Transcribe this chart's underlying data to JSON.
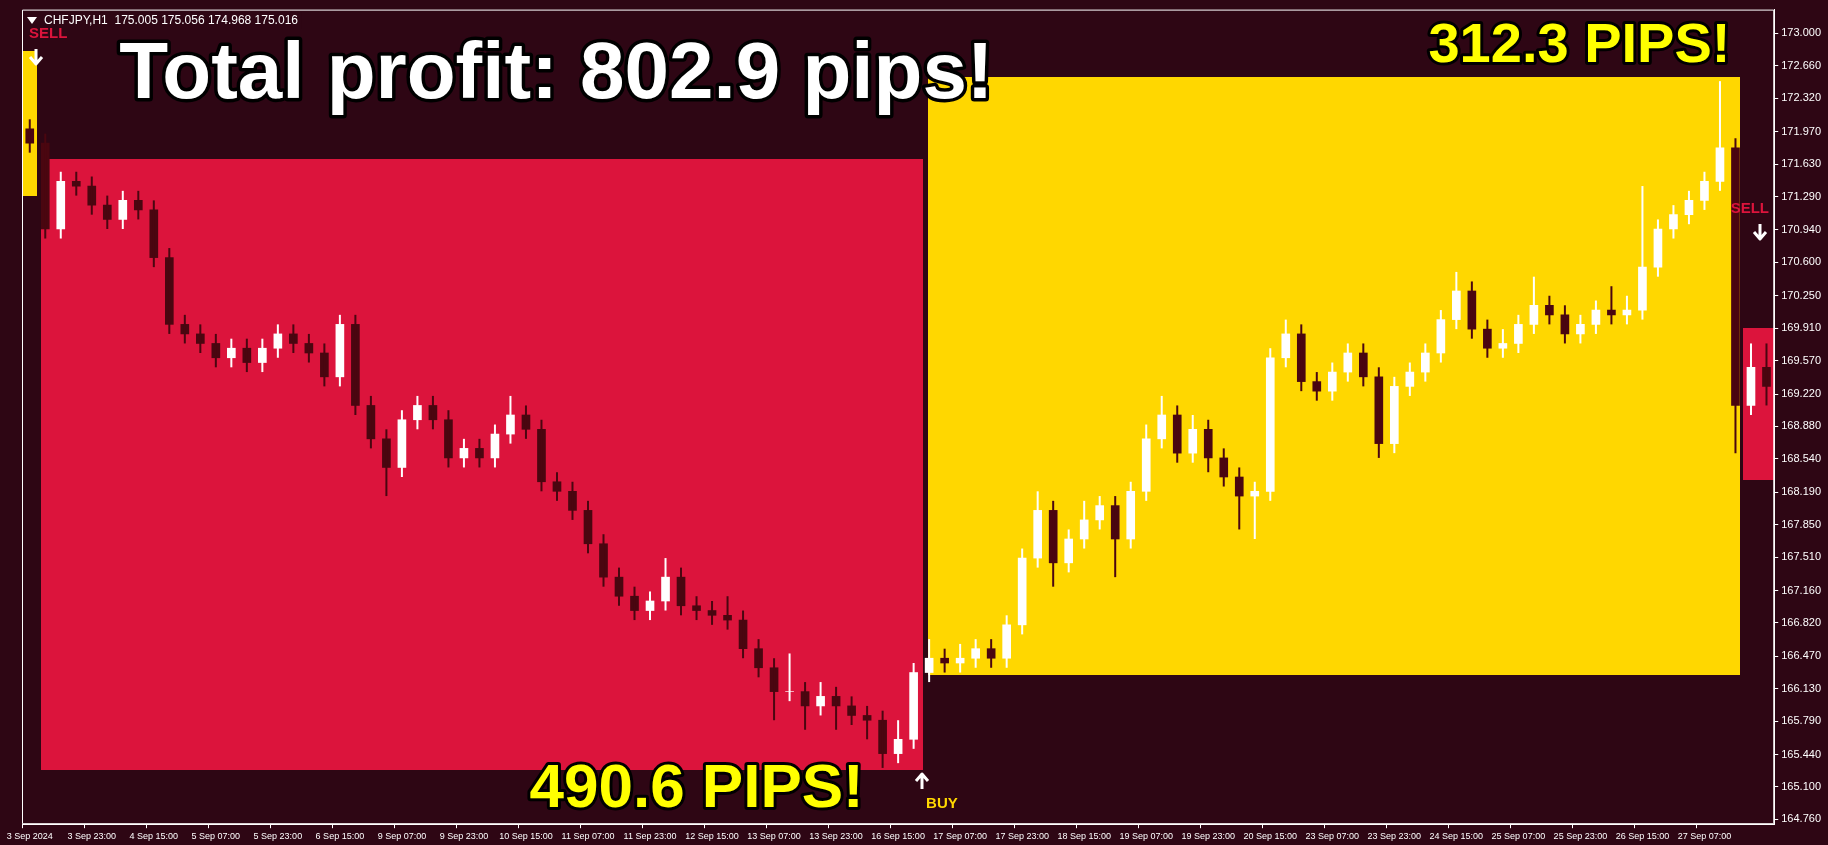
{
  "chart_data": {
    "type": "candlestick",
    "title": "CHFJPY,H1  175.005 175.056 174.968 175.016",
    "categories": [
      "3 Sep 2024",
      null,
      null,
      null,
      "3 Sep 23:00",
      null,
      null,
      null,
      "4 Sep 15:00",
      null,
      null,
      null,
      "5 Sep 07:00",
      null,
      null,
      null,
      "5 Sep 23:00",
      null,
      null,
      null,
      "6 Sep 15:00",
      null,
      null,
      null,
      "9 Sep 07:00",
      null,
      null,
      null,
      "9 Sep 23:00",
      null,
      null,
      null,
      "10 Sep 15:00",
      null,
      null,
      null,
      "11 Sep 07:00",
      null,
      null,
      null,
      "11 Sep 23:00",
      null,
      null,
      null,
      "12 Sep 15:00",
      null,
      null,
      null,
      "13 Sep 07:00",
      null,
      null,
      null,
      "13 Sep 23:00",
      null,
      null,
      null,
      "16 Sep 15:00",
      null,
      null,
      null,
      "17 Sep 07:00",
      null,
      null,
      null,
      "17 Sep 23:00",
      null,
      null,
      null,
      "18 Sep 15:00",
      null,
      null,
      null,
      "19 Sep 07:00",
      null,
      null,
      null,
      "19 Sep 23:00",
      null,
      null,
      null,
      "20 Sep 15:00",
      null,
      null,
      null,
      "23 Sep 07:00",
      null,
      null,
      null,
      "23 Sep 23:00",
      null,
      null,
      null,
      "24 Sep 15:00",
      null,
      null,
      null,
      "25 Sep 07:00",
      null,
      null,
      null,
      "25 Sep 23:00",
      null,
      null,
      null,
      "26 Sep 15:00",
      null,
      null,
      null,
      "27 Sep 07:00",
      null,
      null,
      null,
      null
    ],
    "ohlc": [
      [
        172.0,
        172.1,
        171.75,
        171.85
      ],
      [
        171.85,
        171.95,
        170.85,
        170.95
      ],
      [
        170.95,
        171.55,
        170.85,
        171.45
      ],
      [
        171.45,
        171.55,
        171.3,
        171.4
      ],
      [
        171.4,
        171.5,
        171.1,
        171.2
      ],
      [
        171.2,
        171.3,
        170.95,
        171.05
      ],
      [
        171.05,
        171.35,
        170.95,
        171.25
      ],
      [
        171.25,
        171.35,
        171.05,
        171.15
      ],
      [
        171.15,
        171.25,
        170.55,
        170.65
      ],
      [
        170.65,
        170.75,
        169.85,
        169.95
      ],
      [
        169.95,
        170.05,
        169.75,
        169.85
      ],
      [
        169.85,
        169.95,
        169.65,
        169.75
      ],
      [
        169.75,
        169.85,
        169.5,
        169.6
      ],
      [
        169.6,
        169.8,
        169.5,
        169.7
      ],
      [
        169.7,
        169.8,
        169.45,
        169.55
      ],
      [
        169.55,
        169.8,
        169.45,
        169.7
      ],
      [
        169.7,
        169.95,
        169.6,
        169.85
      ],
      [
        169.85,
        169.95,
        169.65,
        169.75
      ],
      [
        169.75,
        169.85,
        169.55,
        169.65
      ],
      [
        169.65,
        169.75,
        169.3,
        169.4
      ],
      [
        169.4,
        170.05,
        169.3,
        169.95
      ],
      [
        169.95,
        170.05,
        169.0,
        169.1
      ],
      [
        169.1,
        169.2,
        168.65,
        168.75
      ],
      [
        168.75,
        168.85,
        168.15,
        168.45
      ],
      [
        168.45,
        169.05,
        168.35,
        168.95
      ],
      [
        168.95,
        169.2,
        168.85,
        169.1
      ],
      [
        169.1,
        169.2,
        168.85,
        168.95
      ],
      [
        168.95,
        169.05,
        168.45,
        168.55
      ],
      [
        168.55,
        168.75,
        168.45,
        168.65
      ],
      [
        168.65,
        168.75,
        168.45,
        168.55
      ],
      [
        168.55,
        168.9,
        168.45,
        168.8
      ],
      [
        168.8,
        169.2,
        168.7,
        169.0
      ],
      [
        169.0,
        169.1,
        168.75,
        168.85
      ],
      [
        168.85,
        168.95,
        168.2,
        168.3
      ],
      [
        168.3,
        168.4,
        168.1,
        168.2
      ],
      [
        168.2,
        168.3,
        167.9,
        168.0
      ],
      [
        168.0,
        168.1,
        167.55,
        167.65
      ],
      [
        167.65,
        167.75,
        167.2,
        167.3
      ],
      [
        167.3,
        167.4,
        167.0,
        167.1
      ],
      [
        167.1,
        167.2,
        166.85,
        166.95
      ],
      [
        166.95,
        167.15,
        166.85,
        167.05
      ],
      [
        167.05,
        167.5,
        166.95,
        167.3
      ],
      [
        167.3,
        167.4,
        166.9,
        167.0
      ],
      [
        167.0,
        167.1,
        166.85,
        166.95
      ],
      [
        166.95,
        167.05,
        166.8,
        166.9
      ],
      [
        166.9,
        167.1,
        166.75,
        166.85
      ],
      [
        166.85,
        166.95,
        166.45,
        166.55
      ],
      [
        166.55,
        166.65,
        166.25,
        166.35
      ],
      [
        166.35,
        166.45,
        165.8,
        166.1
      ],
      [
        166.1,
        166.5,
        166.0,
        166.1
      ],
      [
        166.1,
        166.2,
        165.7,
        165.95
      ],
      [
        165.95,
        166.2,
        165.85,
        166.05
      ],
      [
        166.05,
        166.15,
        165.7,
        165.95
      ],
      [
        165.95,
        166.05,
        165.75,
        165.85
      ],
      [
        165.85,
        165.95,
        165.6,
        165.8
      ],
      [
        165.8,
        165.9,
        165.3,
        165.45
      ],
      [
        165.45,
        165.8,
        165.35,
        165.6
      ],
      [
        165.6,
        166.4,
        165.5,
        166.3
      ],
      [
        166.3,
        166.65,
        166.2,
        166.45
      ],
      [
        166.45,
        166.55,
        166.3,
        166.4
      ],
      [
        166.4,
        166.6,
        166.3,
        166.45
      ],
      [
        166.45,
        166.65,
        166.35,
        166.55
      ],
      [
        166.55,
        166.65,
        166.35,
        166.45
      ],
      [
        166.45,
        166.9,
        166.35,
        166.8
      ],
      [
        166.8,
        167.6,
        166.7,
        167.5
      ],
      [
        167.5,
        168.2,
        167.4,
        168.0
      ],
      [
        168.0,
        168.1,
        167.2,
        167.45
      ],
      [
        167.45,
        167.8,
        167.35,
        167.7
      ],
      [
        167.7,
        168.1,
        167.6,
        167.9
      ],
      [
        167.9,
        168.15,
        167.8,
        168.05
      ],
      [
        168.05,
        168.15,
        167.3,
        167.7
      ],
      [
        167.7,
        168.3,
        167.6,
        168.2
      ],
      [
        168.2,
        168.9,
        168.1,
        168.75
      ],
      [
        168.75,
        169.2,
        168.65,
        169.0
      ],
      [
        169.0,
        169.1,
        168.5,
        168.6
      ],
      [
        168.6,
        169.0,
        168.5,
        168.85
      ],
      [
        168.85,
        168.95,
        168.4,
        168.55
      ],
      [
        168.55,
        168.65,
        168.25,
        168.35
      ],
      [
        168.35,
        168.45,
        167.8,
        168.15
      ],
      [
        168.15,
        168.3,
        167.7,
        168.2
      ],
      [
        168.2,
        169.7,
        168.1,
        169.6
      ],
      [
        169.6,
        170.0,
        169.5,
        169.85
      ],
      [
        169.85,
        169.95,
        169.25,
        169.35
      ],
      [
        169.35,
        169.45,
        169.15,
        169.25
      ],
      [
        169.25,
        169.55,
        169.15,
        169.45
      ],
      [
        169.45,
        169.75,
        169.35,
        169.65
      ],
      [
        169.65,
        169.75,
        169.3,
        169.4
      ],
      [
        169.4,
        169.5,
        168.55,
        168.7
      ],
      [
        168.7,
        169.4,
        168.6,
        169.3
      ],
      [
        169.3,
        169.55,
        169.2,
        169.45
      ],
      [
        169.45,
        169.75,
        169.35,
        169.65
      ],
      [
        169.65,
        170.1,
        169.55,
        170.0
      ],
      [
        170.0,
        170.5,
        169.9,
        170.3
      ],
      [
        170.3,
        170.4,
        169.8,
        169.9
      ],
      [
        169.9,
        170.0,
        169.6,
        169.7
      ],
      [
        169.7,
        169.9,
        169.6,
        169.75
      ],
      [
        169.75,
        170.05,
        169.65,
        169.95
      ],
      [
        169.95,
        170.45,
        169.85,
        170.15
      ],
      [
        170.15,
        170.25,
        169.95,
        170.05
      ],
      [
        170.05,
        170.15,
        169.75,
        169.85
      ],
      [
        169.85,
        170.05,
        169.75,
        169.95
      ],
      [
        169.95,
        170.2,
        169.85,
        170.1
      ],
      [
        170.1,
        170.35,
        169.95,
        170.05
      ],
      [
        170.05,
        170.25,
        169.95,
        170.1
      ],
      [
        170.1,
        171.4,
        170.0,
        170.55
      ],
      [
        170.55,
        171.05,
        170.45,
        170.95
      ],
      [
        170.95,
        171.2,
        170.85,
        171.1
      ],
      [
        171.1,
        171.35,
        171.0,
        171.25
      ],
      [
        171.25,
        171.55,
        171.15,
        171.45
      ],
      [
        171.45,
        172.5,
        171.35,
        171.8
      ],
      [
        171.8,
        171.9,
        168.6,
        169.1
      ],
      [
        169.1,
        169.75,
        169.0,
        169.5
      ],
      [
        169.5,
        169.75,
        169.1,
        169.3
      ]
    ],
    "colors": [
      "#4a0610",
      "#4a0610",
      "#ffffff",
      "#4a0610",
      "#4a0610",
      "#4a0610",
      "#ffffff",
      "#4a0610",
      "#4a0610",
      "#4a0610",
      "#4a0610",
      "#4a0610",
      "#4a0610",
      "#ffffff",
      "#4a0610",
      "#ffffff",
      "#ffffff",
      "#4a0610",
      "#4a0610",
      "#4a0610",
      "#ffffff",
      "#4a0610",
      "#4a0610",
      "#4a0610",
      "#ffffff",
      "#ffffff",
      "#4a0610",
      "#4a0610",
      "#ffffff",
      "#4a0610",
      "#ffffff",
      "#ffffff",
      "#4a0610",
      "#4a0610",
      "#4a0610",
      "#4a0610",
      "#4a0610",
      "#4a0610",
      "#4a0610",
      "#4a0610",
      "#ffffff",
      "#ffffff",
      "#4a0610",
      "#4a0610",
      "#4a0610",
      "#4a0610",
      "#4a0610",
      "#4a0610",
      "#4a0610",
      "#ffffff",
      "#4a0610",
      "#ffffff",
      "#4a0610",
      "#4a0610",
      "#4a0610",
      "#4a0610",
      "#ffffff",
      "#ffffff",
      "#ffffff",
      "#4a0610",
      "#ffffff",
      "#ffffff",
      "#4a0610",
      "#ffffff",
      "#ffffff",
      "#ffffff",
      "#4a0610",
      "#ffffff",
      "#ffffff",
      "#ffffff",
      "#4a0610",
      "#ffffff",
      "#ffffff",
      "#ffffff",
      "#4a0610",
      "#ffffff",
      "#4a0610",
      "#4a0610",
      "#4a0610",
      "#ffffff",
      "#ffffff",
      "#ffffff",
      "#4a0610",
      "#4a0610",
      "#ffffff",
      "#ffffff",
      "#4a0610",
      "#4a0610",
      "#ffffff",
      "#ffffff",
      "#ffffff",
      "#ffffff",
      "#ffffff",
      "#4a0610",
      "#4a0610",
      "#ffffff",
      "#ffffff",
      "#ffffff",
      "#4a0610",
      "#4a0610",
      "#ffffff",
      "#ffffff",
      "#4a0610",
      "#ffffff",
      "#ffffff",
      "#ffffff",
      "#ffffff",
      "#ffffff",
      "#ffffff",
      "#ffffff",
      "#4a0610",
      "#ffffff",
      "#4a0610"
    ],
    "ylim": [
      164.71,
      173.25
    ],
    "yticks": [
      {
        "value": 173.0,
        "label": "173.000"
      },
      {
        "value": 172.66,
        "label": "172.660"
      },
      {
        "value": 172.32,
        "label": "172.320"
      },
      {
        "value": 171.97,
        "label": "171.970"
      },
      {
        "value": 171.63,
        "label": "171.630"
      },
      {
        "value": 171.29,
        "label": "171.290"
      },
      {
        "value": 170.94,
        "label": "170.940"
      },
      {
        "value": 170.6,
        "label": "170.600"
      },
      {
        "value": 170.25,
        "label": "170.250"
      },
      {
        "value": 169.91,
        "label": "169.910"
      },
      {
        "value": 169.57,
        "label": "169.570"
      },
      {
        "value": 169.22,
        "label": "169.220"
      },
      {
        "value": 168.88,
        "label": "168.880"
      },
      {
        "value": 168.54,
        "label": "168.540"
      },
      {
        "value": 168.19,
        "label": "168.190"
      },
      {
        "value": 167.85,
        "label": "167.850"
      },
      {
        "value": 167.51,
        "label": "167.510"
      },
      {
        "value": 167.16,
        "label": "167.160"
      },
      {
        "value": 166.82,
        "label": "166.820"
      },
      {
        "value": 166.47,
        "label": "166.470"
      },
      {
        "value": 166.13,
        "label": "166.130"
      },
      {
        "value": 165.79,
        "label": "165.790"
      },
      {
        "value": 165.44,
        "label": "165.440"
      },
      {
        "value": 165.1,
        "label": "165.100"
      },
      {
        "value": 164.76,
        "label": "164.760"
      }
    ],
    "annotations": [
      "Total profit: 802.9 pips!",
      "312.3 PIPS!",
      "490.6 PIPS!",
      "SELL",
      "SELL",
      "BUY"
    ],
    "grid": false,
    "legend": false
  }
}
